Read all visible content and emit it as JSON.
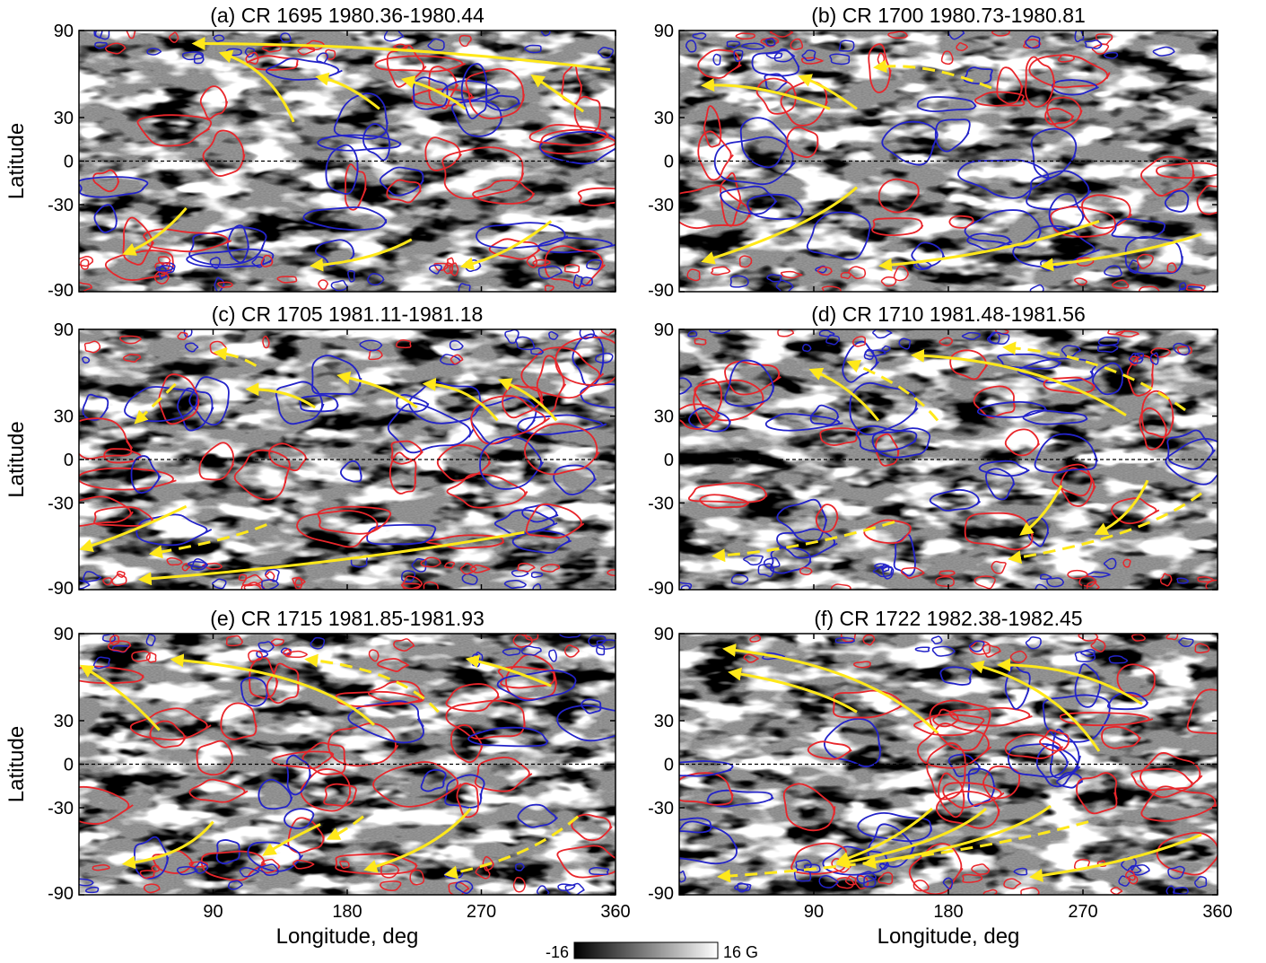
{
  "figure": {
    "colorbar": {
      "min_label": "-16",
      "max_label": "16 G",
      "low_color": "#000000",
      "high_color": "#ffffff"
    },
    "x_axis_label": "Longitude, deg",
    "y_axis_label": "Latitude",
    "contour_colors": {
      "positive": "#e8262b",
      "negative": "#2323c8"
    },
    "arrow_color": "#ffe81a",
    "equator_line": "dashed black"
  },
  "chart_data": [
    {
      "type": "heatmap",
      "title": "(a) CR 1695  1980.36-1980.44",
      "xlim": [
        0,
        360
      ],
      "ylim": [
        -90,
        90
      ],
      "xticks": [
        "90",
        "180",
        "270",
        "360"
      ],
      "yticks": [
        "90",
        "30",
        "0",
        "-30",
        "-90"
      ]
    },
    {
      "type": "heatmap",
      "title": "(b) CR 1700  1980.73-1980.81",
      "xlim": [
        0,
        360
      ],
      "ylim": [
        -90,
        90
      ],
      "xticks": [
        "90",
        "180",
        "270",
        "360"
      ],
      "yticks": [
        "90",
        "30",
        "0",
        "-30",
        "-90"
      ]
    },
    {
      "type": "heatmap",
      "title": "(c) CR 1705  1981.11-1981.18",
      "xlim": [
        0,
        360
      ],
      "ylim": [
        -90,
        90
      ],
      "xticks": [
        "90",
        "180",
        "270",
        "360"
      ],
      "yticks": [
        "90",
        "30",
        "0",
        "-30",
        "-90"
      ]
    },
    {
      "type": "heatmap",
      "title": "(d)  CR 1710  1981.48-1981.56",
      "xlim": [
        0,
        360
      ],
      "ylim": [
        -90,
        90
      ],
      "xticks": [
        "90",
        "180",
        "270",
        "360"
      ],
      "yticks": [
        "90",
        "30",
        "0",
        "-30",
        "-90"
      ]
    },
    {
      "type": "heatmap",
      "title": "(e)  CR 1715  1981.85-1981.93",
      "xlim": [
        0,
        360
      ],
      "ylim": [
        -90,
        90
      ],
      "xticks": [
        "90",
        "180",
        "270",
        "360"
      ],
      "yticks": [
        "90",
        "30",
        "0",
        "-30",
        "-90"
      ]
    },
    {
      "type": "heatmap",
      "title": "(f)  CR 1722  1982.38-1982.45",
      "xlim": [
        0,
        360
      ],
      "ylim": [
        -90,
        90
      ],
      "xticks": [
        "90",
        "180",
        "270",
        "360"
      ],
      "yticks": [
        "90",
        "30",
        "0",
        "-30",
        "-90"
      ]
    }
  ]
}
